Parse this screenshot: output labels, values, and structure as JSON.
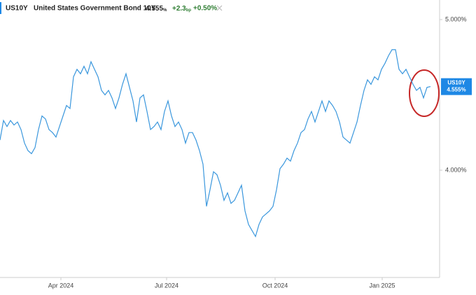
{
  "header": {
    "symbol": "US10Y",
    "name": "United States Government Bond 10Y",
    "price": "4.555",
    "price_unit": "%",
    "change": "+2.3",
    "change_unit": "bp",
    "change_pct": "+0.50%"
  },
  "chart_data": {
    "type": "line",
    "series": [
      {
        "name": "US10Y",
        "color": "#3a97dd",
        "values": [
          4.2,
          4.33,
          4.29,
          4.33,
          4.3,
          4.32,
          4.27,
          4.18,
          4.13,
          4.11,
          4.15,
          4.27,
          4.36,
          4.34,
          4.27,
          4.25,
          4.22,
          4.29,
          4.36,
          4.43,
          4.41,
          4.62,
          4.67,
          4.64,
          4.69,
          4.64,
          4.72,
          4.67,
          4.62,
          4.53,
          4.5,
          4.53,
          4.48,
          4.41,
          4.48,
          4.57,
          4.64,
          4.55,
          4.46,
          4.32,
          4.48,
          4.5,
          4.39,
          4.27,
          4.29,
          4.32,
          4.27,
          4.39,
          4.46,
          4.36,
          4.29,
          4.32,
          4.27,
          4.18,
          4.25,
          4.25,
          4.2,
          4.13,
          4.04,
          3.76,
          3.87,
          3.99,
          3.97,
          3.9,
          3.8,
          3.85,
          3.78,
          3.8,
          3.85,
          3.9,
          3.73,
          3.64,
          3.6,
          3.56,
          3.64,
          3.69,
          3.71,
          3.73,
          3.76,
          3.87,
          4.01,
          4.04,
          4.08,
          4.06,
          4.13,
          4.18,
          4.25,
          4.27,
          4.34,
          4.39,
          4.32,
          4.39,
          4.46,
          4.39,
          4.46,
          4.43,
          4.39,
          4.32,
          4.22,
          4.2,
          4.18,
          4.25,
          4.32,
          4.43,
          4.53,
          4.6,
          4.57,
          4.62,
          4.6,
          4.67,
          4.71,
          4.76,
          4.8,
          4.8,
          4.67,
          4.64,
          4.67,
          4.62,
          4.57,
          4.53,
          4.55,
          4.48,
          4.55,
          4.555
        ]
      }
    ],
    "xlim": [
      0,
      123
    ],
    "xticks": [
      {
        "value": 17.4,
        "label": "Apr 2024"
      },
      {
        "value": 47.6,
        "label": "Jul 2024"
      },
      {
        "value": 78.6,
        "label": "Oct 2024"
      },
      {
        "value": 109.2,
        "label": "Jan 2025"
      }
    ],
    "ylim": [
      3.288,
      5.13
    ],
    "yticks": [
      {
        "value": 4,
        "label": "4.000%"
      },
      {
        "value": 5,
        "label": "5.000%"
      }
    ],
    "last_label": {
      "name": "US10Y",
      "value_label": "4.555%",
      "color": "#1e88e5"
    }
  }
}
